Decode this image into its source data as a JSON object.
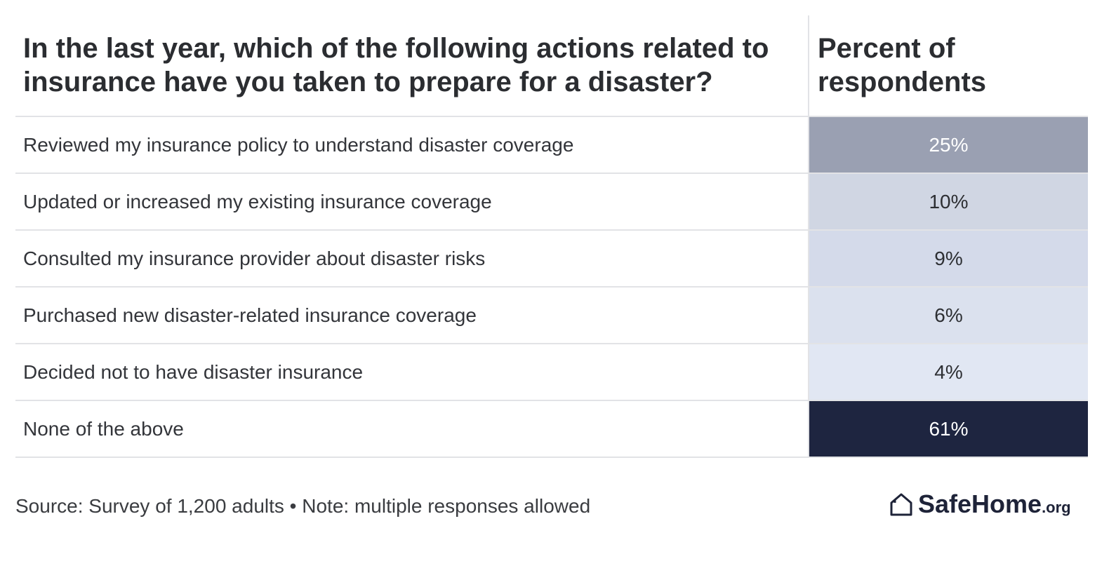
{
  "chart_data": {
    "type": "table",
    "header": {
      "question": "In the last year, which of the following actions related to insurance have you taken to prepare for a disaster?",
      "value_column": "Percent of respondents"
    },
    "rows": [
      {
        "label": "Reviewed my insurance policy to understand disaster coverage",
        "value": 25,
        "display": "25%",
        "fill": "#9aa0b2",
        "text_color": "#ffffff"
      },
      {
        "label": "Updated or increased my existing insurance coverage",
        "value": 10,
        "display": "10%",
        "fill": "#d0d6e3",
        "text_color": "#2d2f33"
      },
      {
        "label": "Consulted my insurance provider about disaster risks",
        "value": 9,
        "display": "9%",
        "fill": "#d4daea",
        "text_color": "#2d2f33"
      },
      {
        "label": "Purchased new disaster-related insurance coverage",
        "value": 6,
        "display": "6%",
        "fill": "#dbe1ee",
        "text_color": "#2d2f33"
      },
      {
        "label": "Decided not to have disaster insurance",
        "value": 4,
        "display": "4%",
        "fill": "#e1e7f3",
        "text_color": "#2d2f33"
      },
      {
        "label": "None of the above",
        "value": 61,
        "display": "61%",
        "fill": "#1e2540",
        "text_color": "#ffffff"
      }
    ]
  },
  "footer": {
    "source": "Source: Survey of 1,200 adults • Note: multiple responses allowed",
    "logo_name": "SafeHome",
    "logo_suffix": ".org",
    "logo_icon": "house-icon"
  }
}
